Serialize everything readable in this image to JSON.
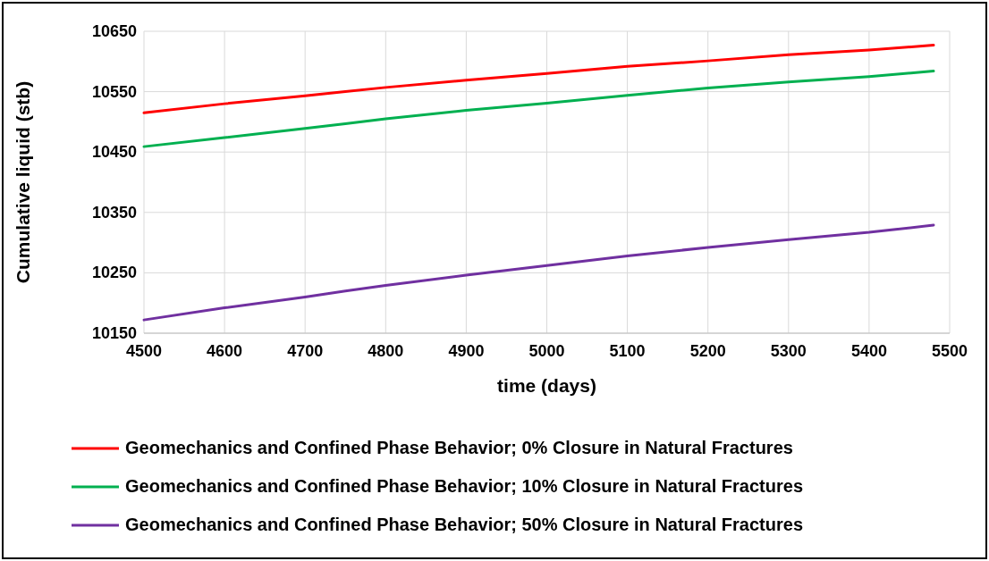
{
  "chart_data": {
    "type": "line",
    "xlabel": "time (days)",
    "ylabel": "Cumulative liquid (stb)",
    "xlim": [
      4500,
      5500
    ],
    "xticks": [
      4500,
      4600,
      4700,
      4800,
      4900,
      5000,
      5100,
      5200,
      5300,
      5400,
      5500
    ],
    "ylim": [
      10150,
      10650
    ],
    "yticks": [
      10150,
      10250,
      10350,
      10450,
      10550,
      10650
    ],
    "grid": true,
    "legend": "bottom",
    "marker": "none",
    "line_style": "solid",
    "x": [
      4500,
      4600,
      4700,
      4750,
      4800,
      4900,
      5000,
      5100,
      5200,
      5300,
      5400,
      5480
    ],
    "series": [
      {
        "name": "Geomechanics and Confined Phase Behavior; 0% Closure in Natural Fractures",
        "color": "#ff0000",
        "values": [
          10515,
          10530,
          10543,
          10550,
          10557,
          10569,
          10580,
          10592,
          10601,
          10611,
          10619,
          10627
        ]
      },
      {
        "name": "Geomechanics and Confined Phase Behavior; 10% Closure in Natural Fractures",
        "color": "#00b050",
        "values": [
          10459,
          10474,
          10489,
          10497,
          10505,
          10519,
          10531,
          10544,
          10556,
          10566,
          10575,
          10584
        ]
      },
      {
        "name": "Geomechanics and Confined Phase Behavior; 50% Closure in Natural Fractures",
        "color": "#7030a0",
        "values": [
          10172,
          10192,
          10210,
          10220,
          10229,
          10246,
          10262,
          10278,
          10292,
          10305,
          10317,
          10329
        ]
      }
    ]
  }
}
